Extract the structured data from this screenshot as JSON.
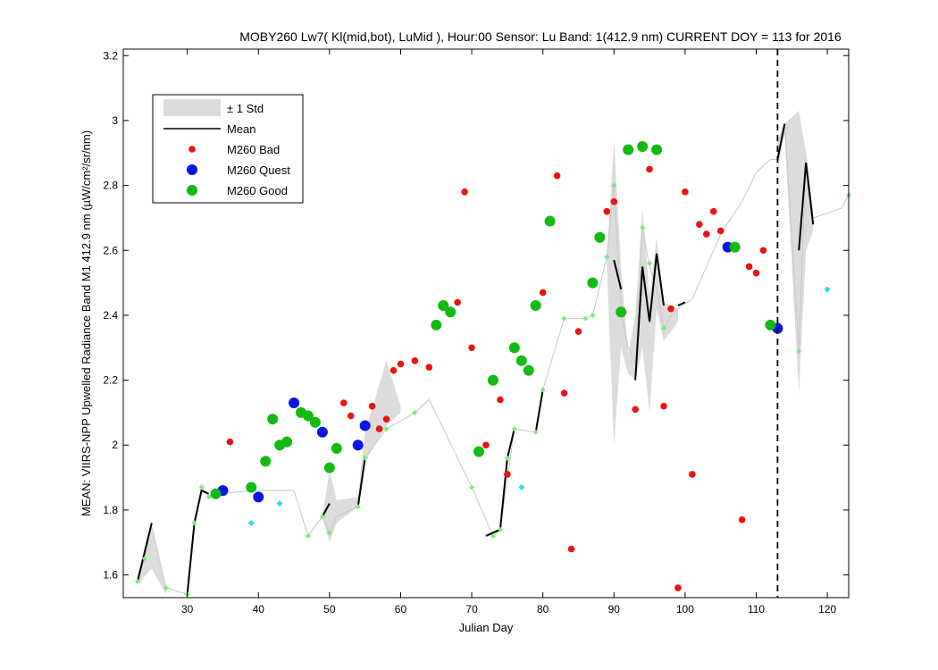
{
  "chart_data": {
    "type": "scatter",
    "title": "MOBY260   Lw7( Kl(mid,bot), LuMid ),   Hour:00 Sensor: Lu Band: 1(412.9 nm)   CURRENT DOY = 113 for 2016",
    "xlabel": "Julian Day",
    "ylabel": "MEAN: VIIRS-NPP Upwelled Radiance Band M1 412.9 nm (µW/cm²/sr/nm)",
    "xlim": [
      21,
      123
    ],
    "ylim": [
      1.53,
      3.22
    ],
    "x_ticks": [
      30,
      40,
      50,
      60,
      70,
      80,
      90,
      100,
      110,
      120
    ],
    "y_ticks": [
      1.6,
      1.8,
      2.0,
      2.2,
      2.4,
      2.6,
      2.8,
      3.0,
      3.2
    ],
    "current_doy": 113,
    "legend": {
      "placement": "top-left",
      "entries": [
        {
          "label": "± 1 Std",
          "kind": "band",
          "color": "#dcdcdc"
        },
        {
          "label": "Mean",
          "kind": "line",
          "color": "#000000"
        },
        {
          "label": "M260 Bad",
          "kind": "dot-small",
          "color": "#ee1111"
        },
        {
          "label": "M260 Quest",
          "kind": "dot-large",
          "color": "#0a14e6"
        },
        {
          "label": "M260 Good",
          "kind": "dot-large",
          "color": "#11bb11"
        }
      ]
    },
    "colors": {
      "std_band": "#dcdcdc",
      "mean_line": "#000000",
      "thin_line": "#c8c8c8",
      "bad": "#ee1111",
      "quest": "#0a14e6",
      "good": "#11bb11",
      "light_green": "#77ee77",
      "cyan": "#22e0ee"
    },
    "std_band": [
      {
        "x": [
          23,
          25,
          27
        ],
        "upper": [
          1.6,
          1.75,
          1.56
        ],
        "lower": [
          1.57,
          1.62,
          1.54
        ]
      },
      {
        "x": [
          49,
          50,
          51,
          54,
          55,
          58,
          60
        ],
        "upper": [
          1.78,
          1.92,
          1.83,
          1.84,
          2.04,
          2.26,
          2.12
        ],
        "lower": [
          1.78,
          1.7,
          1.76,
          1.81,
          1.95,
          2.06,
          2.1
        ]
      },
      {
        "x": [
          89,
          90,
          91,
          92,
          93,
          94,
          95,
          96,
          97,
          99
        ],
        "upper": [
          2.58,
          2.94,
          2.55,
          2.28,
          2.4,
          2.73,
          2.46,
          2.64,
          2.44,
          2.42
        ],
        "lower": [
          2.55,
          2.0,
          2.3,
          2.22,
          2.2,
          2.3,
          2.1,
          2.42,
          2.32,
          2.38
        ]
      },
      {
        "x": [
          113,
          114,
          116,
          117,
          118
        ],
        "upper": [
          2.94,
          2.99,
          3.03,
          2.9,
          2.72
        ],
        "lower": [
          2.84,
          2.96,
          2.16,
          2.6,
          2.66
        ]
      }
    ],
    "thin_line": {
      "x": [
        23,
        24,
        25,
        27,
        30,
        31,
        32,
        33,
        34,
        40,
        45,
        47,
        49,
        50,
        51,
        54,
        55,
        58,
        62,
        64,
        70,
        73,
        74,
        76,
        79,
        80,
        83,
        86,
        87,
        89,
        90,
        91,
        92,
        93,
        94,
        95,
        96,
        97,
        98,
        99,
        101,
        103,
        105,
        108,
        110,
        112,
        113,
        114,
        116,
        117,
        118,
        122,
        123
      ],
      "y": [
        1.58,
        1.65,
        1.75,
        1.56,
        1.54,
        1.76,
        1.87,
        1.84,
        1.85,
        1.86,
        1.86,
        1.72,
        1.78,
        1.73,
        1.78,
        1.81,
        1.96,
        2.05,
        2.1,
        2.14,
        1.87,
        1.72,
        1.74,
        2.05,
        2.04,
        2.17,
        2.39,
        2.39,
        2.4,
        2.58,
        2.8,
        2.41,
        2.3,
        2.25,
        2.67,
        2.55,
        2.48,
        2.36,
        2.4,
        2.42,
        2.45,
        2.55,
        2.65,
        2.75,
        2.84,
        2.88,
        2.88,
        2.99,
        2.29,
        2.88,
        2.7,
        2.73,
        2.77
      ]
    },
    "mean_segments": [
      {
        "x": [
          23,
          25
        ],
        "y": [
          1.58,
          1.76
        ]
      },
      {
        "x": [
          30,
          31,
          32,
          33
        ],
        "y": [
          1.54,
          1.76,
          1.86,
          1.85
        ]
      },
      {
        "x": [
          49,
          50
        ],
        "y": [
          1.78,
          1.82
        ]
      },
      {
        "x": [
          54,
          55
        ],
        "y": [
          1.81,
          1.96
        ]
      },
      {
        "x": [
          72,
          73,
          74,
          75,
          76
        ],
        "y": [
          1.72,
          1.73,
          1.74,
          1.96,
          2.05
        ]
      },
      {
        "x": [
          79,
          80
        ],
        "y": [
          2.04,
          2.17
        ]
      },
      {
        "x": [
          90,
          91
        ],
        "y": [
          2.57,
          2.48
        ]
      },
      {
        "x": [
          93,
          94,
          95,
          96,
          97
        ],
        "y": [
          2.2,
          2.55,
          2.38,
          2.59,
          2.43
        ]
      },
      {
        "x": [
          99,
          100
        ],
        "y": [
          2.43,
          2.44
        ]
      },
      {
        "x": [
          113,
          114
        ],
        "y": [
          2.88,
          2.99
        ]
      },
      {
        "x": [
          116,
          117,
          118
        ],
        "y": [
          2.6,
          2.87,
          2.68
        ]
      }
    ],
    "bad": [
      {
        "x": 36,
        "y": 2.01
      },
      {
        "x": 52,
        "y": 2.13
      },
      {
        "x": 53,
        "y": 2.09
      },
      {
        "x": 56,
        "y": 2.12
      },
      {
        "x": 57,
        "y": 2.05
      },
      {
        "x": 58,
        "y": 2.08
      },
      {
        "x": 59,
        "y": 2.23
      },
      {
        "x": 60,
        "y": 2.25
      },
      {
        "x": 62,
        "y": 2.26
      },
      {
        "x": 64,
        "y": 2.24
      },
      {
        "x": 68,
        "y": 2.44
      },
      {
        "x": 69,
        "y": 2.78
      },
      {
        "x": 70,
        "y": 2.3
      },
      {
        "x": 72,
        "y": 2.0
      },
      {
        "x": 74,
        "y": 2.14
      },
      {
        "x": 75,
        "y": 1.91
      },
      {
        "x": 80,
        "y": 2.47
      },
      {
        "x": 82,
        "y": 2.83
      },
      {
        "x": 83,
        "y": 2.16
      },
      {
        "x": 84,
        "y": 1.68
      },
      {
        "x": 85,
        "y": 2.35
      },
      {
        "x": 89,
        "y": 2.72
      },
      {
        "x": 90,
        "y": 2.75
      },
      {
        "x": 93,
        "y": 2.11
      },
      {
        "x": 95,
        "y": 2.85
      },
      {
        "x": 97,
        "y": 2.12
      },
      {
        "x": 98,
        "y": 2.42
      },
      {
        "x": 99,
        "y": 1.56
      },
      {
        "x": 100,
        "y": 2.78
      },
      {
        "x": 101,
        "y": 1.91
      },
      {
        "x": 102,
        "y": 2.68
      },
      {
        "x": 103,
        "y": 2.65
      },
      {
        "x": 104,
        "y": 2.72
      },
      {
        "x": 105,
        "y": 2.66
      },
      {
        "x": 108,
        "y": 1.77
      },
      {
        "x": 109,
        "y": 2.55
      },
      {
        "x": 110,
        "y": 2.53
      },
      {
        "x": 111,
        "y": 2.6
      }
    ],
    "quest": [
      {
        "x": 35,
        "y": 1.86
      },
      {
        "x": 40,
        "y": 1.84
      },
      {
        "x": 45,
        "y": 2.13
      },
      {
        "x": 49,
        "y": 2.04
      },
      {
        "x": 54,
        "y": 2.0
      },
      {
        "x": 55,
        "y": 2.06
      },
      {
        "x": 106,
        "y": 2.61
      },
      {
        "x": 113,
        "y": 2.36
      }
    ],
    "good": [
      {
        "x": 34,
        "y": 1.85
      },
      {
        "x": 39,
        "y": 1.87
      },
      {
        "x": 41,
        "y": 1.95
      },
      {
        "x": 42,
        "y": 2.08
      },
      {
        "x": 43,
        "y": 2.0
      },
      {
        "x": 44,
        "y": 2.01
      },
      {
        "x": 46,
        "y": 2.1
      },
      {
        "x": 47,
        "y": 2.09
      },
      {
        "x": 48,
        "y": 2.07
      },
      {
        "x": 50,
        "y": 1.93
      },
      {
        "x": 51,
        "y": 1.99
      },
      {
        "x": 65,
        "y": 2.37
      },
      {
        "x": 66,
        "y": 2.43
      },
      {
        "x": 67,
        "y": 2.41
      },
      {
        "x": 71,
        "y": 1.98
      },
      {
        "x": 73,
        "y": 2.2
      },
      {
        "x": 76,
        "y": 2.3
      },
      {
        "x": 77,
        "y": 2.26
      },
      {
        "x": 78,
        "y": 2.23
      },
      {
        "x": 79,
        "y": 2.43
      },
      {
        "x": 81,
        "y": 2.69
      },
      {
        "x": 87,
        "y": 2.5
      },
      {
        "x": 88,
        "y": 2.64
      },
      {
        "x": 91,
        "y": 2.41
      },
      {
        "x": 92,
        "y": 2.91
      },
      {
        "x": 94,
        "y": 2.92
      },
      {
        "x": 96,
        "y": 2.91
      },
      {
        "x": 107,
        "y": 2.61
      },
      {
        "x": 112,
        "y": 2.37
      }
    ],
    "light_green": [
      {
        "x": 23,
        "y": 1.58
      },
      {
        "x": 24,
        "y": 1.65
      },
      {
        "x": 27,
        "y": 1.56
      },
      {
        "x": 30,
        "y": 1.54
      },
      {
        "x": 31,
        "y": 1.76
      },
      {
        "x": 32,
        "y": 1.87
      },
      {
        "x": 33,
        "y": 1.84
      },
      {
        "x": 47,
        "y": 1.72
      },
      {
        "x": 49,
        "y": 1.78
      },
      {
        "x": 50,
        "y": 1.73
      },
      {
        "x": 54,
        "y": 1.81
      },
      {
        "x": 55,
        "y": 1.96
      },
      {
        "x": 58,
        "y": 2.05
      },
      {
        "x": 62,
        "y": 2.1
      },
      {
        "x": 70,
        "y": 1.87
      },
      {
        "x": 73,
        "y": 1.72
      },
      {
        "x": 74,
        "y": 1.74
      },
      {
        "x": 75,
        "y": 1.96
      },
      {
        "x": 76,
        "y": 2.05
      },
      {
        "x": 79,
        "y": 2.04
      },
      {
        "x": 80,
        "y": 2.17
      },
      {
        "x": 83,
        "y": 2.39
      },
      {
        "x": 86,
        "y": 2.39
      },
      {
        "x": 87,
        "y": 2.4
      },
      {
        "x": 89,
        "y": 2.58
      },
      {
        "x": 90,
        "y": 2.8
      },
      {
        "x": 94,
        "y": 2.67
      },
      {
        "x": 95,
        "y": 2.56
      },
      {
        "x": 97,
        "y": 2.36
      },
      {
        "x": 116,
        "y": 2.29
      },
      {
        "x": 123,
        "y": 2.77
      }
    ],
    "cyan": [
      {
        "x": 39,
        "y": 1.76
      },
      {
        "x": 43,
        "y": 1.82
      },
      {
        "x": 77,
        "y": 1.87
      },
      {
        "x": 120,
        "y": 2.48
      }
    ]
  }
}
